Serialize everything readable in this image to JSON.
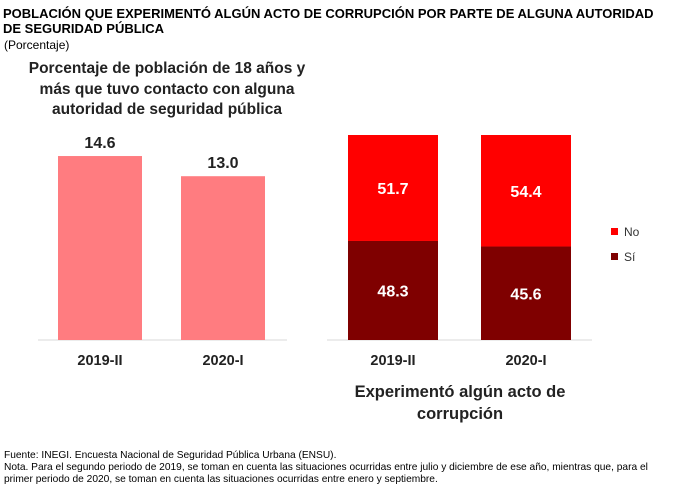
{
  "header": {
    "title": "POBLACIÓN QUE EXPERIMENTÓ ALGÚN ACTO DE CORRUPCIÓN POR PARTE DE ALGUNA AUTORIDAD DE SEGURIDAD PÚBLICA",
    "subtitle": "(Porcentaje)"
  },
  "chart_data": [
    {
      "type": "bar",
      "title": "Porcentaje de población de 18 años y más que tuvo contacto con alguna autoridad de seguridad pública",
      "categories": [
        "2019-II",
        "2020-I"
      ],
      "values": [
        14.6,
        13.0
      ],
      "value_labels": [
        "14.6",
        "13.0"
      ],
      "color": "#ff7c80",
      "grid": false,
      "legend": "none"
    },
    {
      "type": "bar",
      "stacked": true,
      "percent": true,
      "title": "Experimentó algún acto de corrupción",
      "categories": [
        "2019-II",
        "2020-I"
      ],
      "series": [
        {
          "name": "Sí",
          "values": [
            48.3,
            45.6
          ],
          "labels": [
            "48.3",
            "45.6"
          ],
          "color": "#7f0000"
        },
        {
          "name": "No",
          "values": [
            51.7,
            54.4
          ],
          "labels": [
            "51.7",
            "54.4"
          ],
          "color": "#ff0000"
        }
      ],
      "ylim": [
        0,
        100
      ],
      "grid": false,
      "legend": "right"
    }
  ],
  "footer": {
    "source": "Fuente: INEGI. Encuesta Nacional de Seguridad Pública Urbana (ENSU).",
    "note": "Nota. Para el segundo periodo de 2019, se toman en cuenta las situaciones ocurridas entre julio y diciembre de ese año, mientras que, para el primer periodo de 2020, se toman en cuenta las situaciones ocurridas entre enero y septiembre."
  }
}
